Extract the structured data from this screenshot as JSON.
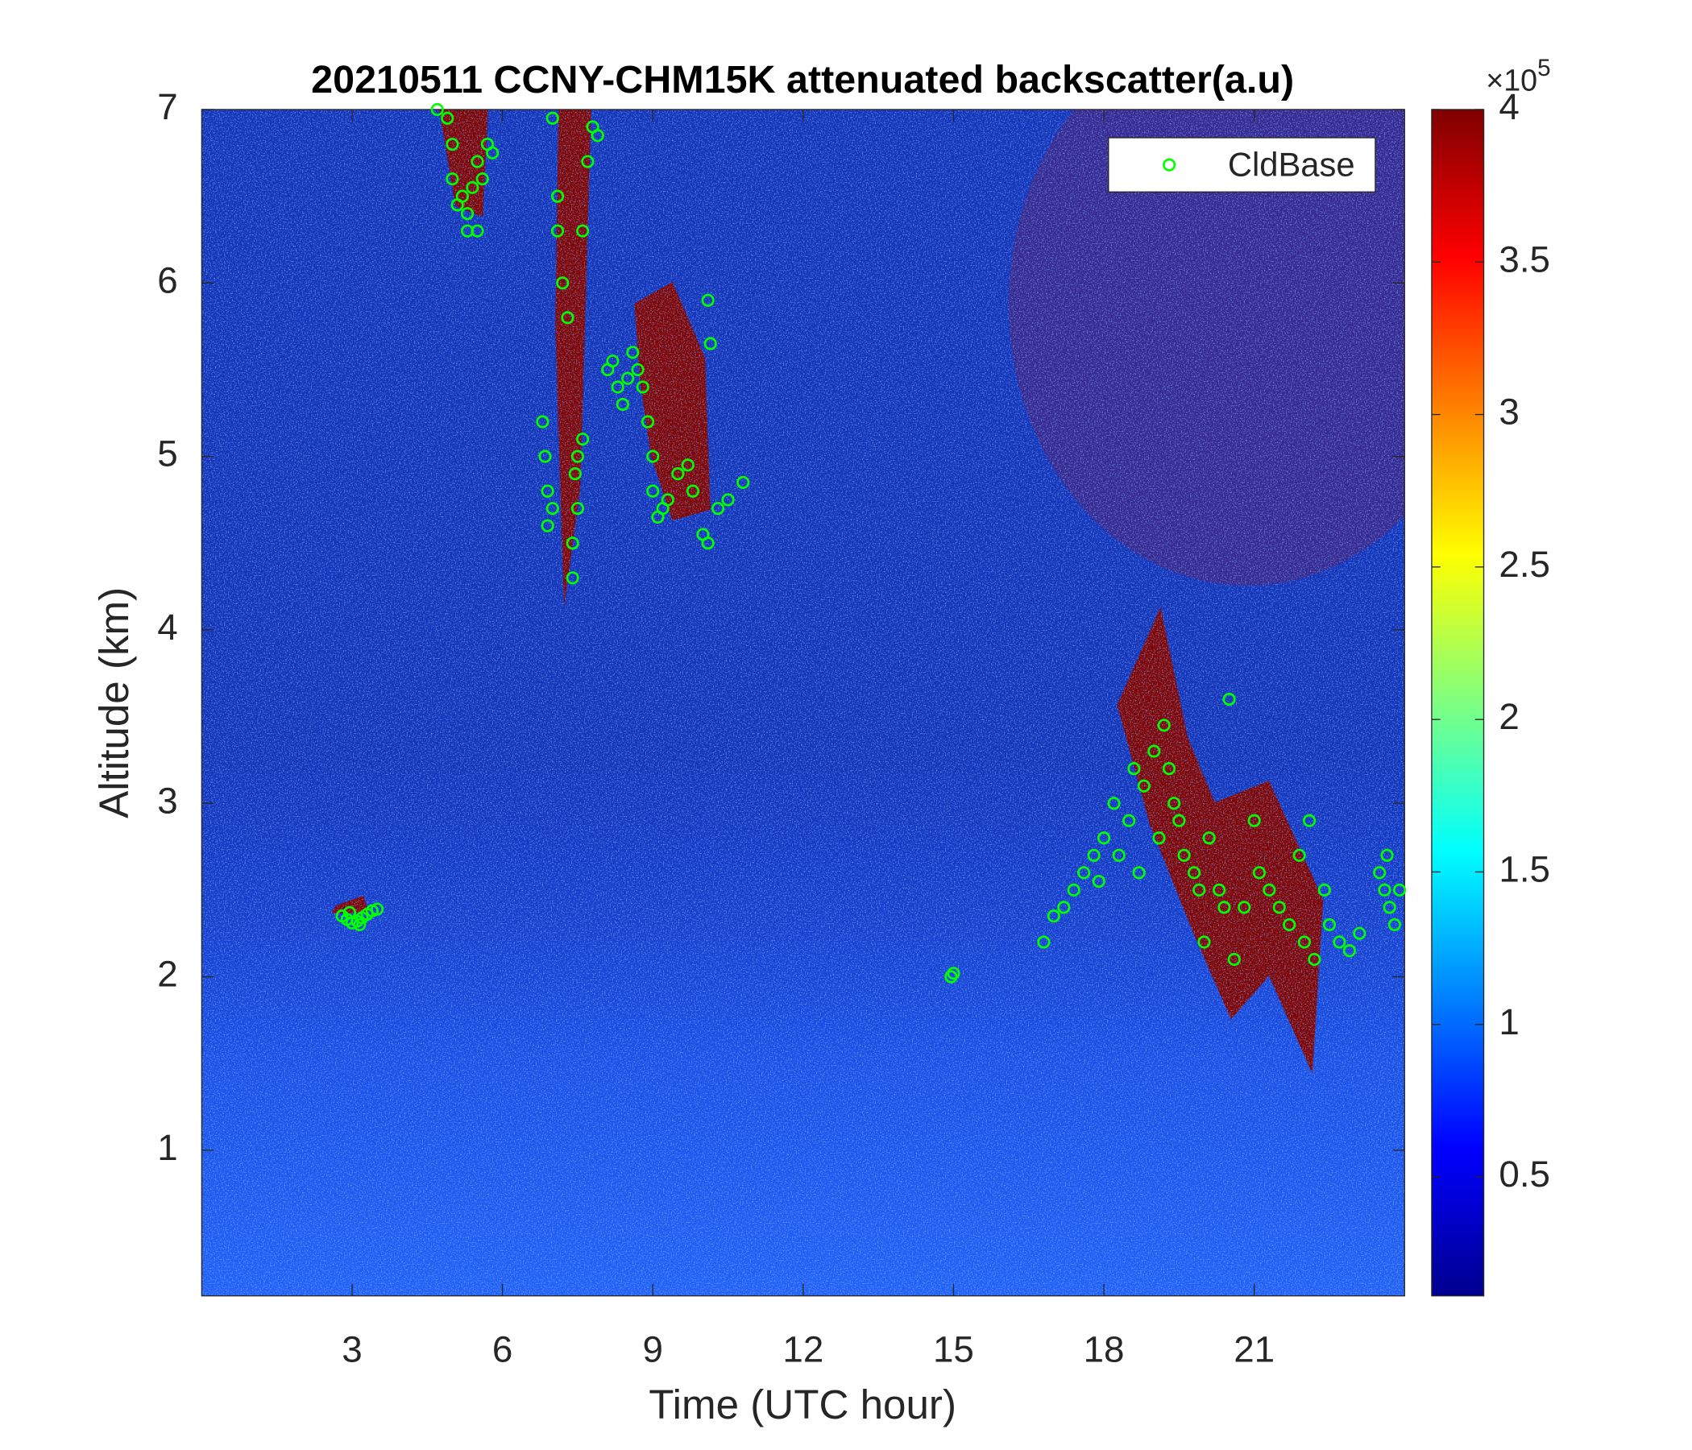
{
  "chart_data": {
    "type": "scatter",
    "title": "20210511 CCNY-CHM15K attenuated backscatter(a.u)",
    "xlabel": "Time (UTC hour)",
    "ylabel": "Altitude (km)",
    "xlim": [
      0,
      24
    ],
    "ylim": [
      0.16,
      7
    ],
    "xticks": [
      3,
      6,
      9,
      12,
      15,
      18,
      21
    ],
    "yticks": [
      1,
      2,
      3,
      4,
      5,
      6,
      7
    ],
    "legend": "upper right",
    "series": [
      {
        "name": "CldBase",
        "color": "#00ff00",
        "x": [
          2.8,
          2.9,
          3.0,
          3.1,
          3.2,
          3.3,
          3.4,
          3.5,
          2.95,
          3.15,
          4.7,
          4.9,
          5.0,
          5.0,
          5.1,
          5.2,
          5.3,
          5.3,
          5.4,
          5.5,
          5.5,
          5.6,
          5.7,
          5.8,
          6.8,
          6.85,
          6.9,
          6.9,
          7.0,
          7.0,
          7.1,
          7.1,
          7.2,
          7.3,
          7.4,
          7.4,
          7.45,
          7.5,
          7.5,
          7.6,
          7.6,
          7.7,
          7.8,
          7.9,
          8.1,
          8.2,
          8.3,
          8.4,
          8.5,
          8.6,
          8.7,
          8.8,
          8.9,
          9.0,
          9.0,
          9.1,
          9.2,
          9.3,
          9.5,
          9.7,
          9.8,
          10.0,
          10.1,
          10.3,
          10.5,
          10.8,
          10.1,
          10.15,
          14.95,
          15.0,
          16.8,
          17.0,
          17.2,
          17.4,
          17.6,
          17.8,
          17.9,
          18.0,
          18.2,
          18.3,
          18.5,
          18.6,
          18.7,
          18.8,
          19.0,
          19.1,
          19.2,
          19.3,
          19.4,
          19.5,
          19.6,
          19.8,
          19.9,
          20.0,
          20.1,
          20.3,
          20.4,
          20.5,
          20.6,
          20.8,
          21.0,
          21.1,
          21.3,
          21.5,
          21.7,
          21.9,
          22.0,
          22.1,
          22.2,
          22.4,
          22.5,
          22.7,
          22.9,
          23.1,
          23.5,
          23.6,
          23.7,
          23.8,
          23.9,
          23.65
        ],
        "y": [
          2.35,
          2.33,
          2.31,
          2.32,
          2.34,
          2.36,
          2.38,
          2.39,
          2.37,
          2.3,
          7.0,
          6.95,
          6.8,
          6.6,
          6.45,
          6.5,
          6.4,
          6.3,
          6.55,
          6.7,
          6.3,
          6.6,
          6.8,
          6.75,
          5.2,
          5.0,
          4.8,
          4.6,
          4.7,
          6.95,
          6.5,
          6.3,
          6.0,
          5.8,
          4.3,
          4.5,
          4.9,
          4.7,
          5.0,
          5.1,
          6.3,
          6.7,
          6.9,
          6.85,
          5.5,
          5.55,
          5.4,
          5.3,
          5.45,
          5.6,
          5.5,
          5.4,
          5.2,
          5.0,
          4.8,
          4.65,
          4.7,
          4.75,
          4.9,
          4.95,
          4.8,
          4.55,
          4.5,
          4.7,
          4.75,
          4.85,
          5.9,
          5.65,
          2.0,
          2.02,
          2.2,
          2.35,
          2.4,
          2.5,
          2.6,
          2.7,
          2.55,
          2.8,
          3.0,
          2.7,
          2.9,
          3.2,
          2.6,
          3.1,
          3.3,
          2.8,
          3.45,
          3.2,
          3.0,
          2.9,
          2.7,
          2.6,
          2.5,
          2.2,
          2.8,
          2.5,
          2.4,
          3.6,
          2.1,
          2.4,
          2.9,
          2.6,
          2.5,
          2.4,
          2.3,
          2.7,
          2.2,
          2.9,
          2.1,
          2.5,
          2.3,
          2.2,
          2.15,
          2.25,
          2.6,
          2.5,
          2.4,
          2.3,
          2.5,
          2.7
        ]
      }
    ],
    "colorbar": {
      "colormap": "jet",
      "lim": [
        0.11,
        4
      ],
      "ticks": [
        0.5,
        1,
        1.5,
        2,
        2.5,
        3,
        3.5,
        4
      ],
      "multiplier": "×10",
      "exponent": "5"
    }
  }
}
